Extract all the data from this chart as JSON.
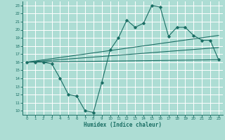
{
  "xlabel": "Humidex (Indice chaleur)",
  "xlim": [
    -0.5,
    23.5
  ],
  "ylim": [
    9.5,
    23.5
  ],
  "xticks": [
    0,
    1,
    2,
    3,
    4,
    5,
    6,
    7,
    8,
    9,
    10,
    11,
    12,
    13,
    14,
    15,
    16,
    17,
    18,
    19,
    20,
    21,
    22,
    23
  ],
  "yticks": [
    10,
    11,
    12,
    13,
    14,
    15,
    16,
    17,
    18,
    19,
    20,
    21,
    22,
    23
  ],
  "bg_color": "#adddd4",
  "grid_color": "#ffffff",
  "line_color": "#1a6e64",
  "main_line": {
    "x": [
      0,
      1,
      2,
      3,
      4,
      5,
      6,
      7,
      8,
      9,
      10,
      11,
      12,
      13,
      14,
      15,
      16,
      17,
      18,
      19,
      20,
      21,
      22,
      23
    ],
    "y": [
      16,
      16,
      16,
      15.8,
      14,
      12,
      11.8,
      10,
      9.8,
      13.5,
      17.5,
      19.0,
      21.2,
      20.3,
      20.8,
      23.0,
      22.8,
      19.2,
      20.3,
      20.3,
      19.3,
      18.7,
      18.7,
      16.3
    ]
  },
  "upper_line": {
    "x": [
      0,
      23
    ],
    "y": [
      16.0,
      19.3
    ]
  },
  "lower_line": {
    "x": [
      0,
      23
    ],
    "y": [
      16.0,
      16.3
    ]
  },
  "mid_line": {
    "x": [
      0,
      23
    ],
    "y": [
      16.0,
      17.8
    ]
  }
}
